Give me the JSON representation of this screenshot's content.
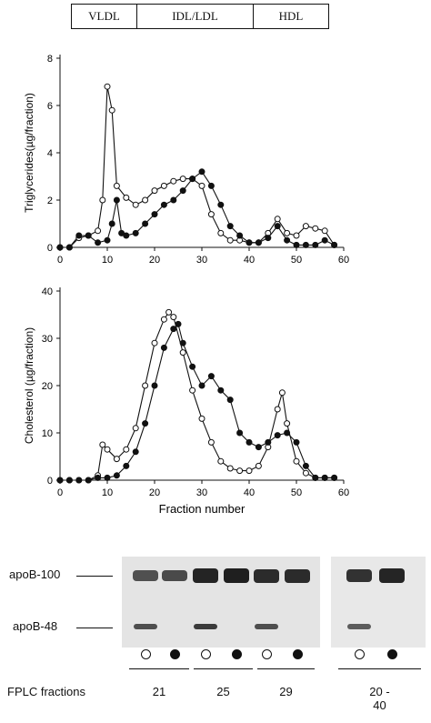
{
  "header": {
    "segments": [
      {
        "label": "VLDL",
        "start": 0,
        "end": 11
      },
      {
        "label": "IDL/LDL",
        "start": 11,
        "end": 40
      },
      {
        "label": "HDL",
        "start": 40,
        "end": 54
      }
    ]
  },
  "chart_data": [
    {
      "type": "line",
      "title": "",
      "xlabel": "",
      "ylabel": "Triglycerides(µg/fraction)",
      "xlim": [
        0,
        60
      ],
      "ylim": [
        0,
        8
      ],
      "xticks": [
        0,
        10,
        20,
        30,
        40,
        50,
        60
      ],
      "yticks": [
        0,
        2,
        4,
        6,
        8
      ],
      "grid": false,
      "series": [
        {
          "marker": "open-circle",
          "x": [
            0,
            2,
            4,
            6,
            8,
            9,
            10,
            11,
            12,
            14,
            16,
            18,
            20,
            22,
            24,
            26,
            28,
            30,
            32,
            34,
            36,
            38,
            40,
            42,
            44,
            46,
            48,
            50,
            52,
            54,
            56,
            58
          ],
          "y": [
            0,
            0,
            0.4,
            0.5,
            0.7,
            2.0,
            6.8,
            5.8,
            2.6,
            2.1,
            1.8,
            2.0,
            2.4,
            2.6,
            2.8,
            2.9,
            2.9,
            2.6,
            1.4,
            0.6,
            0.3,
            0.3,
            0.2,
            0.2,
            0.6,
            1.2,
            0.6,
            0.5,
            0.9,
            0.8,
            0.7,
            0.1
          ]
        },
        {
          "marker": "filled-circle",
          "x": [
            0,
            2,
            4,
            6,
            8,
            10,
            11,
            12,
            13,
            14,
            16,
            18,
            20,
            22,
            24,
            26,
            28,
            30,
            32,
            34,
            36,
            38,
            40,
            42,
            44,
            46,
            48,
            50,
            52,
            54,
            56,
            58
          ],
          "y": [
            0,
            0,
            0.5,
            0.5,
            0.2,
            0.3,
            1.0,
            2.0,
            0.6,
            0.5,
            0.6,
            1.0,
            1.4,
            1.8,
            2.0,
            2.4,
            2.9,
            3.2,
            2.6,
            1.8,
            0.9,
            0.5,
            0.2,
            0.2,
            0.4,
            0.9,
            0.3,
            0.1,
            0.1,
            0.1,
            0.3,
            0.1
          ]
        }
      ]
    },
    {
      "type": "line",
      "title": "",
      "xlabel": "Fraction number",
      "ylabel": "Cholesterol (µg/fraction)",
      "xlim": [
        0,
        60
      ],
      "ylim": [
        0,
        40
      ],
      "xticks": [
        0,
        10,
        20,
        30,
        40,
        50,
        60
      ],
      "yticks": [
        0,
        10,
        20,
        30,
        40
      ],
      "grid": false,
      "series": [
        {
          "marker": "open-circle",
          "x": [
            0,
            2,
            4,
            6,
            8,
            9,
            10,
            12,
            14,
            16,
            18,
            20,
            22,
            23,
            24,
            26,
            28,
            30,
            32,
            34,
            36,
            38,
            40,
            42,
            44,
            46,
            47,
            48,
            50,
            52,
            54,
            56,
            58
          ],
          "y": [
            0,
            0,
            0,
            0,
            1,
            7.5,
            6.5,
            4.5,
            6.5,
            11,
            20,
            29,
            34,
            35.5,
            34.5,
            27,
            19,
            13,
            8,
            4,
            2.5,
            2,
            2,
            3,
            7,
            15,
            18.5,
            12,
            4,
            1.5,
            0.5,
            0.5,
            0.5
          ]
        },
        {
          "marker": "filled-circle",
          "x": [
            0,
            2,
            4,
            6,
            8,
            10,
            12,
            14,
            16,
            18,
            20,
            22,
            24,
            25,
            26,
            28,
            30,
            32,
            34,
            36,
            38,
            40,
            42,
            44,
            46,
            48,
            50,
            52,
            54,
            56,
            58
          ],
          "y": [
            0,
            0,
            0,
            0,
            0.5,
            0.5,
            1,
            3,
            6,
            12,
            20,
            28,
            32,
            33,
            29,
            24,
            20,
            22,
            19,
            17,
            10,
            8,
            7,
            8,
            9.5,
            10,
            8,
            3,
            0.5,
            0.5,
            0.5
          ]
        }
      ]
    }
  ],
  "blot": {
    "band_labels": [
      "apoB-100",
      "apoB-48"
    ],
    "fractions_label": "FPLC fractions",
    "groups": [
      "21",
      "25",
      "29",
      "20 - 40"
    ],
    "lanes": [
      {
        "symbol": "open",
        "b100": 0.6,
        "b48": 0.7
      },
      {
        "symbol": "filled",
        "b100": 0.65,
        "b48": 0
      },
      {
        "symbol": "open",
        "b100": 0.95,
        "b48": 0.85
      },
      {
        "symbol": "filled",
        "b100": 1.0,
        "b48": 0
      },
      {
        "symbol": "open",
        "b100": 0.9,
        "b48": 0.7
      },
      {
        "symbol": "filled",
        "b100": 0.9,
        "b48": 0
      },
      {
        "symbol": "open",
        "b100": 0.85,
        "b48": 0.6
      },
      {
        "symbol": "filled",
        "b100": 0.95,
        "b48": 0
      }
    ]
  }
}
